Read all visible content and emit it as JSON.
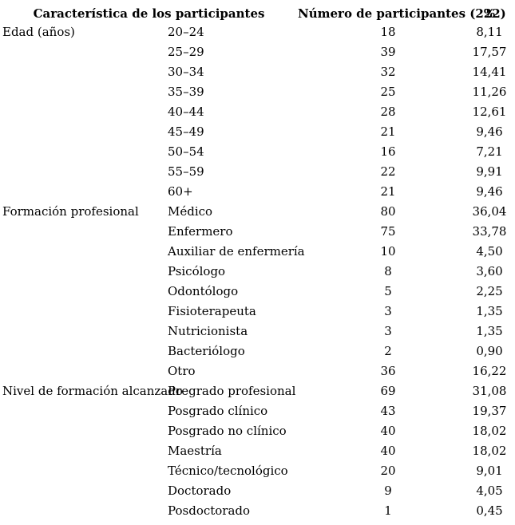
{
  "page": {
    "background_color": "#ffffff",
    "text_color": "#000000",
    "description": "Statistics table of study participant characteristics (Spanish)"
  },
  "table": {
    "headers": {
      "characteristic": "Característica de los participantes",
      "count": "Número de participantes (222)",
      "percent": "%"
    },
    "total_participants": 222,
    "sections": [
      {
        "label": "Edad (años)",
        "rows": [
          {
            "item": "20–24",
            "count": 18,
            "percent": "8,11"
          },
          {
            "item": "25–29",
            "count": 39,
            "percent": "17,57"
          },
          {
            "item": "30–34",
            "count": 32,
            "percent": "14,41"
          },
          {
            "item": "35–39",
            "count": 25,
            "percent": "11,26"
          },
          {
            "item": "40–44",
            "count": 28,
            "percent": "12,61"
          },
          {
            "item": "45–49",
            "count": 21,
            "percent": "9,46"
          },
          {
            "item": "50–54",
            "count": 16,
            "percent": "7,21"
          },
          {
            "item": "55–59",
            "count": 22,
            "percent": "9,91"
          },
          {
            "item": "60+",
            "count": 21,
            "percent": "9,46"
          }
        ]
      },
      {
        "label": "Formación profesional",
        "rows": [
          {
            "item": "Médico",
            "count": 80,
            "percent": "36,04"
          },
          {
            "item": "Enfermero",
            "count": 75,
            "percent": "33,78"
          },
          {
            "item": "Auxiliar de enfermería",
            "count": 10,
            "percent": "4,50"
          },
          {
            "item": "Psicólogo",
            "count": 8,
            "percent": "3,60"
          },
          {
            "item": "Odontólogo",
            "count": 5,
            "percent": "2,25"
          },
          {
            "item": "Fisioterapeuta",
            "count": 3,
            "percent": "1,35"
          },
          {
            "item": "Nutricionista",
            "count": 3,
            "percent": "1,35"
          },
          {
            "item": "Bacteriólogo",
            "count": 2,
            "percent": "0,90"
          },
          {
            "item": "Otro",
            "count": 36,
            "percent": "16,22"
          }
        ]
      },
      {
        "label": "Nivel de formación alcanzado",
        "rows": [
          {
            "item": "Pregrado profesional",
            "count": 69,
            "percent": "31,08"
          },
          {
            "item": "Posgrado clínico",
            "count": 43,
            "percent": "19,37"
          },
          {
            "item": "Posgrado no clínico",
            "count": 40,
            "percent": "18,02"
          },
          {
            "item": "Maestría",
            "count": 40,
            "percent": "18,02"
          },
          {
            "item": "Técnico/tecnológico",
            "count": 20,
            "percent": "9,01"
          },
          {
            "item": "Doctorado",
            "count": 9,
            "percent": "4,05"
          },
          {
            "item": "Posdoctorado",
            "count": 1,
            "percent": "0,45"
          }
        ]
      }
    ]
  }
}
